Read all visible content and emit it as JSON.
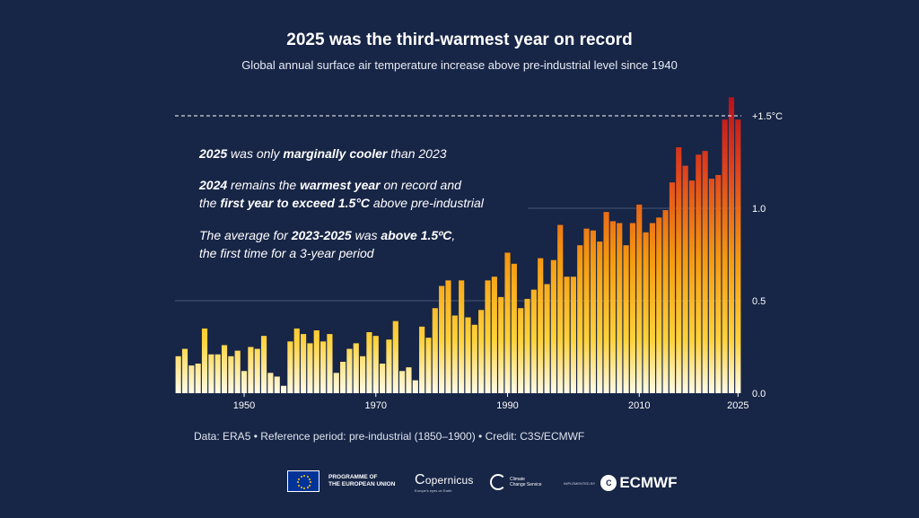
{
  "header": {
    "title": "2025 was the third-warmest year on record",
    "subtitle": "Global annual surface air temperature increase above pre-industrial level since 1940"
  },
  "annotations": {
    "a1": {
      "p1": "2025",
      "p2": " was only ",
      "p3": "marginally cooler",
      "p4": " than 2023"
    },
    "a2": {
      "p1": "2024",
      "p2": " remains the ",
      "p3": "warmest year",
      "p4": " on record and",
      "p5": "the ",
      "p6": "first year to exceed 1.5°C",
      "p7": " above pre-industrial"
    },
    "a3": {
      "p1": "The average for ",
      "p2": "2023-2025",
      "p3": " was ",
      "p4": "above 1.5ºC",
      "p5": ",",
      "p6": "the first time for a 3-year period"
    }
  },
  "footer": {
    "note": "Data: ERA5 • Reference period: pre-industrial (1850–1900) • Credit: C3S/ECMWF"
  },
  "logos": {
    "eu_line1": "PROGRAMME OF",
    "eu_line2": "THE EUROPEAN UNION",
    "copernicus": "opernicus",
    "copernicus_sub": "Europe's eyes on Earth",
    "c3s_line1": "Climate",
    "c3s_line2": "Change Service",
    "implemented_by": "IMPLEMENTED BY",
    "ecmwf": "ECMWF"
  },
  "chart_data": {
    "type": "bar",
    "x": [
      1940,
      1941,
      1942,
      1943,
      1944,
      1945,
      1946,
      1947,
      1948,
      1949,
      1950,
      1951,
      1952,
      1953,
      1954,
      1955,
      1956,
      1957,
      1958,
      1959,
      1960,
      1961,
      1962,
      1963,
      1964,
      1965,
      1966,
      1967,
      1968,
      1969,
      1970,
      1971,
      1972,
      1973,
      1974,
      1975,
      1976,
      1977,
      1978,
      1979,
      1980,
      1981,
      1982,
      1983,
      1984,
      1985,
      1986,
      1987,
      1988,
      1989,
      1990,
      1991,
      1992,
      1993,
      1994,
      1995,
      1996,
      1997,
      1998,
      1999,
      2000,
      2001,
      2002,
      2003,
      2004,
      2005,
      2006,
      2007,
      2008,
      2009,
      2010,
      2011,
      2012,
      2013,
      2014,
      2015,
      2016,
      2017,
      2018,
      2019,
      2020,
      2021,
      2022,
      2023,
      2024,
      2025
    ],
    "values": [
      0.2,
      0.24,
      0.15,
      0.16,
      0.35,
      0.21,
      0.21,
      0.26,
      0.2,
      0.23,
      0.12,
      0.25,
      0.24,
      0.31,
      0.11,
      0.09,
      0.04,
      0.28,
      0.35,
      0.32,
      0.27,
      0.34,
      0.28,
      0.32,
      0.11,
      0.17,
      0.24,
      0.27,
      0.2,
      0.33,
      0.31,
      0.16,
      0.29,
      0.39,
      0.12,
      0.14,
      0.07,
      0.36,
      0.3,
      0.46,
      0.58,
      0.61,
      0.42,
      0.61,
      0.41,
      0.37,
      0.45,
      0.61,
      0.63,
      0.52,
      0.76,
      0.7,
      0.46,
      0.51,
      0.56,
      0.73,
      0.59,
      0.72,
      0.91,
      0.63,
      0.63,
      0.8,
      0.89,
      0.88,
      0.82,
      0.98,
      0.93,
      0.92,
      0.8,
      0.92,
      1.02,
      0.87,
      0.92,
      0.95,
      0.99,
      1.14,
      1.33,
      1.23,
      1.15,
      1.29,
      1.31,
      1.16,
      1.18,
      1.48,
      1.6,
      1.48
    ],
    "x_ticks": [
      "1950",
      "1970",
      "1990",
      "2010",
      "2025"
    ],
    "y_ticks": [
      "0.0",
      "0.5",
      "1.0"
    ],
    "y_min": 0,
    "y_max": 1.6,
    "reference_line": {
      "value": 1.5,
      "label": "+1.5°C"
    }
  }
}
